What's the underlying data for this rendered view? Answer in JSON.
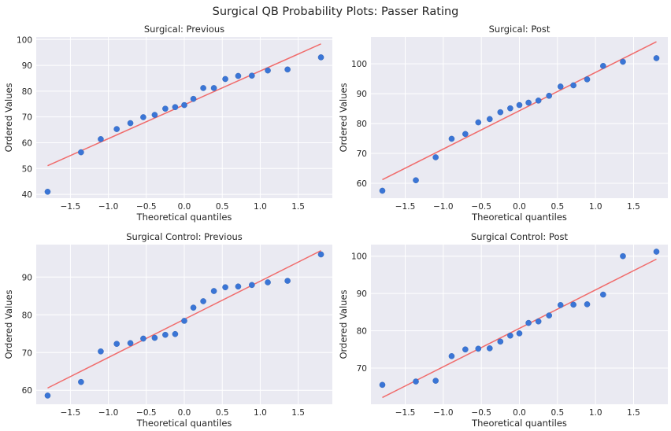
{
  "figure_title": "Surgical QB Probability Plots: Passer Rating",
  "colors": {
    "points": "#3a75d6",
    "fit_line": "#f06c6c",
    "background": "#eaeaf2",
    "grid": "#ffffff"
  },
  "chart_data": [
    {
      "type": "scatter",
      "title": "Surgical: Previous",
      "xlabel": "Theoretical quantiles",
      "ylabel": "Ordered Values",
      "xlim": [
        -1.95,
        1.95
      ],
      "ylim": [
        38.5,
        101
      ],
      "xticks": [
        -1.5,
        -1.0,
        -0.5,
        0.0,
        0.5,
        1.0,
        1.5
      ],
      "xtick_labels": [
        "−1.5",
        "−1.0",
        "−0.5",
        "0.0",
        "0.5",
        "1.0",
        "1.5"
      ],
      "yticks": [
        40,
        50,
        60,
        70,
        80,
        90,
        100
      ],
      "ytick_labels": [
        "40",
        "50",
        "60",
        "70",
        "80",
        "90",
        "100"
      ],
      "grid": true,
      "x": [
        -1.8,
        -1.36,
        -1.1,
        -0.89,
        -0.71,
        -0.54,
        -0.39,
        -0.25,
        -0.12,
        0.0,
        0.12,
        0.25,
        0.39,
        0.54,
        0.71,
        0.89,
        1.1,
        1.36,
        1.8
      ],
      "y": [
        41.0,
        56.3,
        61.4,
        65.3,
        67.6,
        69.9,
        70.8,
        73.2,
        73.8,
        74.6,
        77.0,
        81.2,
        81.2,
        84.7,
        85.9,
        86.0,
        88.0,
        88.4,
        93.1
      ],
      "fit_line": {
        "x": [
          -1.8,
          1.8
        ],
        "y": [
          51.1,
          98.3
        ]
      }
    },
    {
      "type": "scatter",
      "title": "Surgical: Post",
      "xlabel": "Theoretical quantiles",
      "ylabel": "Ordered Values",
      "xlim": [
        -1.95,
        1.95
      ],
      "ylim": [
        55,
        109
      ],
      "xticks": [
        -1.5,
        -1.0,
        -0.5,
        0.0,
        0.5,
        1.0,
        1.5
      ],
      "xtick_labels": [
        "−1.5",
        "−1.0",
        "−0.5",
        "0.0",
        "0.5",
        "1.0",
        "1.5"
      ],
      "yticks": [
        60,
        70,
        80,
        90,
        100
      ],
      "ytick_labels": [
        "60",
        "70",
        "80",
        "90",
        "100"
      ],
      "grid": true,
      "x": [
        -1.8,
        -1.36,
        -1.1,
        -0.89,
        -0.71,
        -0.54,
        -0.39,
        -0.25,
        -0.12,
        0.0,
        0.12,
        0.25,
        0.39,
        0.54,
        0.71,
        0.89,
        1.1,
        1.36,
        1.8
      ],
      "y": [
        57.5,
        61.0,
        68.7,
        74.9,
        76.5,
        80.4,
        81.5,
        83.8,
        85.1,
        86.2,
        87.0,
        87.7,
        89.3,
        92.4,
        92.8,
        94.8,
        99.3,
        100.7,
        101.9
      ],
      "fit_line": {
        "x": [
          -1.8,
          1.8
        ],
        "y": [
          61.2,
          107.4
        ]
      }
    },
    {
      "type": "scatter",
      "title": "Surgical Control: Previous",
      "xlabel": "Theoretical quantiles",
      "ylabel": "Ordered Values",
      "xlim": [
        -1.95,
        1.95
      ],
      "ylim": [
        56.3,
        98.6
      ],
      "xticks": [
        -1.5,
        -1.0,
        -0.5,
        0.0,
        0.5,
        1.0,
        1.5
      ],
      "xtick_labels": [
        "−1.5",
        "−1.0",
        "−0.5",
        "0.0",
        "0.5",
        "1.0",
        "1.5"
      ],
      "yticks": [
        60,
        70,
        80,
        90
      ],
      "ytick_labels": [
        "60",
        "70",
        "80",
        "90"
      ],
      "grid": true,
      "x": [
        -1.8,
        -1.36,
        -1.1,
        -0.89,
        -0.71,
        -0.54,
        -0.39,
        -0.25,
        -0.12,
        0.0,
        0.12,
        0.25,
        0.39,
        0.54,
        0.71,
        0.89,
        1.1,
        1.36,
        1.8
      ],
      "y": [
        58.6,
        62.2,
        70.3,
        72.3,
        72.5,
        73.7,
        73.9,
        74.7,
        74.9,
        78.4,
        81.9,
        83.6,
        86.3,
        87.3,
        87.5,
        87.9,
        88.6,
        89.0,
        96.0
      ],
      "fit_line": {
        "x": [
          -1.8,
          1.8
        ],
        "y": [
          60.6,
          97.0
        ]
      }
    },
    {
      "type": "scatter",
      "title": "Surgical Control: Post",
      "xlabel": "Theoretical quantiles",
      "ylabel": "Ordered Values",
      "xlim": [
        -1.95,
        1.95
      ],
      "ylim": [
        60.3,
        103.1
      ],
      "xticks": [
        -1.5,
        -1.0,
        -0.5,
        0.0,
        0.5,
        1.0,
        1.5
      ],
      "xtick_labels": [
        "−1.5",
        "−1.0",
        "−0.5",
        "0.0",
        "0.5",
        "1.0",
        "1.5"
      ],
      "yticks": [
        70,
        80,
        90,
        100
      ],
      "ytick_labels": [
        "70",
        "80",
        "90",
        "100"
      ],
      "grid": true,
      "x": [
        -1.8,
        -1.36,
        -1.1,
        -0.89,
        -0.71,
        -0.54,
        -0.39,
        -0.25,
        -0.12,
        0.0,
        0.12,
        0.25,
        0.39,
        0.54,
        0.71,
        0.89,
        1.1,
        1.36,
        1.8
      ],
      "y": [
        65.5,
        66.4,
        66.6,
        73.2,
        75.0,
        75.2,
        75.3,
        77.1,
        78.7,
        79.3,
        82.1,
        82.5,
        84.1,
        86.9,
        87.0,
        87.1,
        89.7,
        100.0,
        101.2
      ],
      "fit_line": {
        "x": [
          -1.8,
          1.8
        ],
        "y": [
          62.1,
          99.2
        ]
      }
    }
  ]
}
